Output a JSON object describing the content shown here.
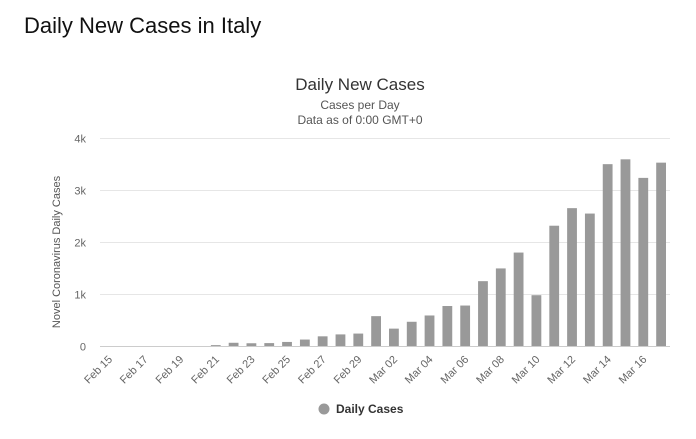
{
  "page": {
    "title": "Daily New Cases in Italy"
  },
  "chart_data": {
    "type": "bar",
    "title": "Daily New Cases",
    "subtitle_lines": [
      "Cases per Day",
      "Data as of 0:00 GMT+0"
    ],
    "ylabel": "Novel Coronavirus Daily Cases",
    "ylim": [
      0,
      4000
    ],
    "yticks": [
      {
        "value": 0,
        "label": "0"
      },
      {
        "value": 1000,
        "label": "1k"
      },
      {
        "value": 2000,
        "label": "2k"
      },
      {
        "value": 3000,
        "label": "3k"
      },
      {
        "value": 4000,
        "label": "4k"
      }
    ],
    "grid": true,
    "legend_position": "bottom-center",
    "bar_color": "#999999",
    "categories": [
      "Feb 15",
      "Feb 16",
      "Feb 17",
      "Feb 18",
      "Feb 19",
      "Feb 20",
      "Feb 21",
      "Feb 22",
      "Feb 23",
      "Feb 24",
      "Feb 25",
      "Feb 26",
      "Feb 27",
      "Feb 28",
      "Feb 29",
      "Mar 01",
      "Mar 02",
      "Mar 03",
      "Mar 04",
      "Mar 05",
      "Mar 06",
      "Mar 07",
      "Mar 08",
      "Mar 09",
      "Mar 10",
      "Mar 11",
      "Mar 12",
      "Mar 13",
      "Mar 14",
      "Mar 15",
      "Mar 16",
      "Mar 17"
    ],
    "xtick_labels": [
      "Feb 15",
      "Feb 17",
      "Feb 19",
      "Feb 21",
      "Feb 23",
      "Feb 25",
      "Feb 27",
      "Feb 29",
      "Mar 02",
      "Mar 04",
      "Mar 06",
      "Mar 08",
      "Mar 10",
      "Mar 12",
      "Mar 14",
      "Mar 16"
    ],
    "series": [
      {
        "name": "Daily Cases",
        "values": [
          0,
          0,
          0,
          0,
          0,
          0,
          17,
          62,
          53,
          56,
          78,
          124,
          186,
          223,
          239,
          574,
          334,
          466,
          587,
          769,
          778,
          1247,
          1492,
          1797,
          977,
          2313,
          2651,
          2547,
          3497,
          3590,
          3233,
          3526
        ]
      }
    ]
  }
}
